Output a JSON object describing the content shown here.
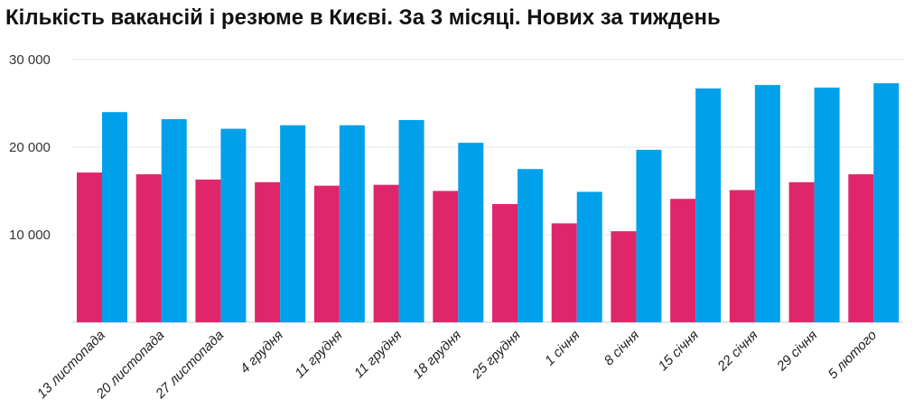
{
  "chart_data": {
    "type": "bar",
    "title": "Кількість вакансій і резюме в Києві. За 3 місяці. Нових за тиждень",
    "xlabel": "",
    "ylabel": "",
    "ylim": [
      0,
      30000
    ],
    "yticks": [
      {
        "value": 10000,
        "label": "10 000"
      },
      {
        "value": 20000,
        "label": "20 000"
      },
      {
        "value": 30000,
        "label": "30 000"
      }
    ],
    "grid": true,
    "categories": [
      "13 листопада",
      "20 листопада",
      "27 листопада",
      "4 грудня",
      "11 грудня",
      "11 грудня",
      "18 грудня",
      "25 грудня",
      "1 січня",
      "8 січня",
      "15 січня",
      "22 січня",
      "29 січня",
      "5 лютого"
    ],
    "series": [
      {
        "color": "#e0266b",
        "values": [
          17100,
          16900,
          16300,
          16000,
          15600,
          15700,
          15000,
          13500,
          11300,
          10400,
          14100,
          15100,
          16000,
          16900
        ]
      },
      {
        "color": "#00a0ea",
        "values": [
          24000,
          23200,
          22100,
          22500,
          22500,
          23100,
          20500,
          17500,
          14900,
          19700,
          26700,
          27100,
          26800,
          27300
        ]
      }
    ]
  }
}
